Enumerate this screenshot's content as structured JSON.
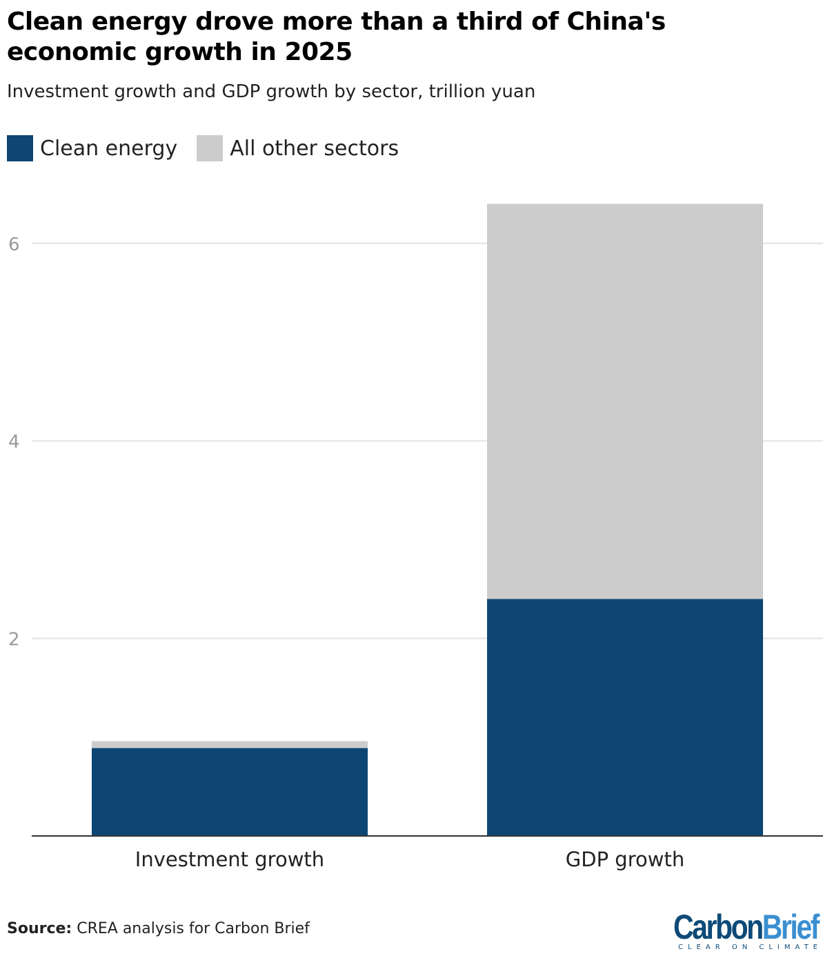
{
  "title": "Clean energy drove more than a third of China's economic growth in 2025",
  "subtitle": "Investment growth and GDP growth by sector, trillion yuan",
  "source_label": "Source:",
  "source_text": "CREA analysis for Carbon Brief",
  "logo": {
    "part1": "Carbon",
    "part2": "Brief",
    "tagline": "CLEAR ON CLIMATE"
  },
  "chart_data": {
    "type": "bar",
    "stacked": true,
    "categories": [
      "Investment growth",
      "GDP growth"
    ],
    "series": [
      {
        "name": "Clean energy",
        "color": "#0d4673",
        "values": [
          0.89,
          2.4
        ]
      },
      {
        "name": "All other sectors",
        "color": "#cccccc",
        "values": [
          0.07,
          4.0
        ]
      }
    ],
    "ylim": [
      0,
      6.4
    ],
    "yticks": [
      2,
      4,
      6
    ],
    "grid": true,
    "legend": "top-left",
    "xlabel": "",
    "ylabel": ""
  }
}
